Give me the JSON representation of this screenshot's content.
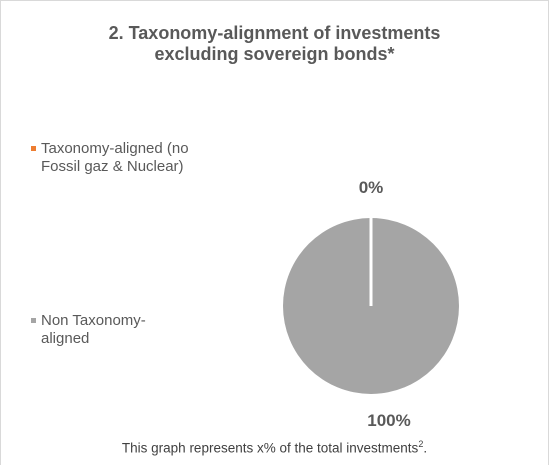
{
  "title_line1": "2. Taxonomy-alignment of investments",
  "title_line2": "excluding sovereign bonds*",
  "legend": [
    {
      "line1": "Taxonomy-aligned (no",
      "line2": "Fossil gaz & Nuclear)",
      "color": "#ED7D31"
    },
    {
      "line1": "Non Taxonomy-",
      "line2": "aligned",
      "color": "#A5A5A5"
    }
  ],
  "footnote": {
    "text": "This graph represents x% of the total investments",
    "sup": "2",
    "end": "."
  },
  "chart_data": {
    "type": "pie",
    "title": "2. Taxonomy-alignment of investments excluding sovereign bonds*",
    "labels": [
      "Taxonomy-aligned (no Fossil gaz & Nuclear)",
      "Non Taxonomy-aligned"
    ],
    "values": [
      0,
      100
    ],
    "data_labels": [
      "0%",
      "100%"
    ],
    "colors": [
      "#ED7D31",
      "#A5A5A5"
    ],
    "legend_position": "left"
  }
}
